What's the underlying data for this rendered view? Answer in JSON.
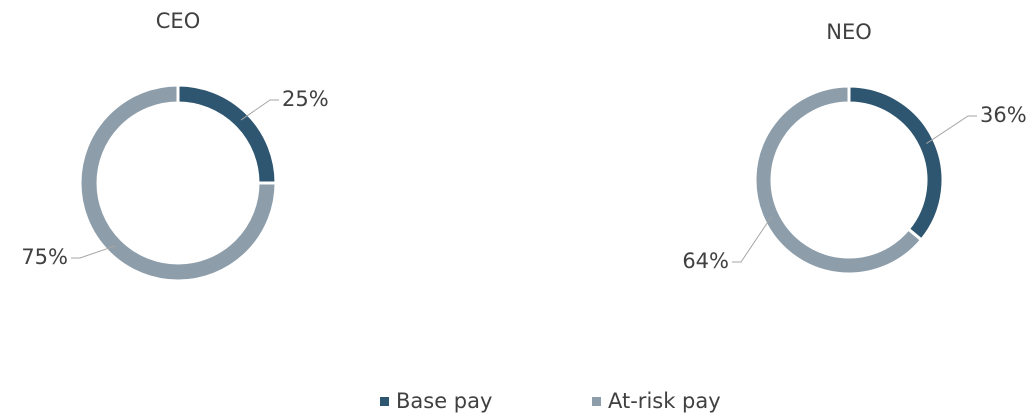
{
  "chart_data": [
    {
      "type": "pie",
      "title": "CEO",
      "values": [
        25,
        75
      ],
      "value_labels": [
        "25%",
        "75%"
      ]
    },
    {
      "type": "pie",
      "title": "NEO",
      "values": [
        36,
        64
      ],
      "value_labels": [
        "36%",
        "64%"
      ]
    }
  ],
  "legend": [
    "Base pay",
    "At-risk pay"
  ],
  "colors": [
    "#2e5670",
    "#8d9daa"
  ]
}
